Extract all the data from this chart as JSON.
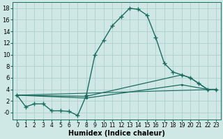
{
  "xlabel": "Humidex (Indice chaleur)",
  "bg_color": "#cfe8e5",
  "line_color": "#1a6b60",
  "grid_color": "#aecfcc",
  "xlim": [
    -0.5,
    23.5
  ],
  "ylim": [
    -1.2,
    19
  ],
  "xticks": [
    0,
    1,
    2,
    3,
    4,
    5,
    6,
    7,
    8,
    9,
    10,
    11,
    12,
    13,
    14,
    15,
    16,
    17,
    18,
    19,
    20,
    21,
    22,
    23
  ],
  "yticks": [
    0,
    2,
    4,
    6,
    8,
    10,
    12,
    14,
    16,
    18
  ],
  "ytick_labels": [
    "-0",
    "2",
    "4",
    "6",
    "8",
    "10",
    "12",
    "14",
    "16",
    "18"
  ],
  "line1": {
    "x": [
      0,
      1,
      2,
      3,
      4,
      5,
      6,
      7,
      8,
      9,
      10,
      11,
      12,
      13,
      14,
      15,
      16,
      17,
      18,
      19,
      20,
      21,
      22,
      23
    ],
    "y": [
      3.0,
      1.0,
      1.5,
      1.5,
      0.3,
      0.3,
      0.2,
      -0.5,
      3.0,
      10.0,
      12.5,
      15.0,
      16.5,
      18.0,
      17.8,
      16.8,
      13.0,
      8.5,
      7.0,
      6.5,
      6.0,
      5.0,
      4.0,
      4.0
    ]
  },
  "line2": {
    "x": [
      0,
      8,
      19,
      20,
      21,
      22,
      23
    ],
    "y": [
      3.0,
      2.8,
      6.5,
      6.0,
      5.0,
      4.0,
      4.0
    ]
  },
  "line3": {
    "x": [
      0,
      8,
      19,
      22,
      23
    ],
    "y": [
      3.0,
      2.5,
      4.8,
      4.0,
      4.0
    ]
  },
  "line4": {
    "x": [
      0,
      23
    ],
    "y": [
      3.0,
      4.0
    ]
  }
}
